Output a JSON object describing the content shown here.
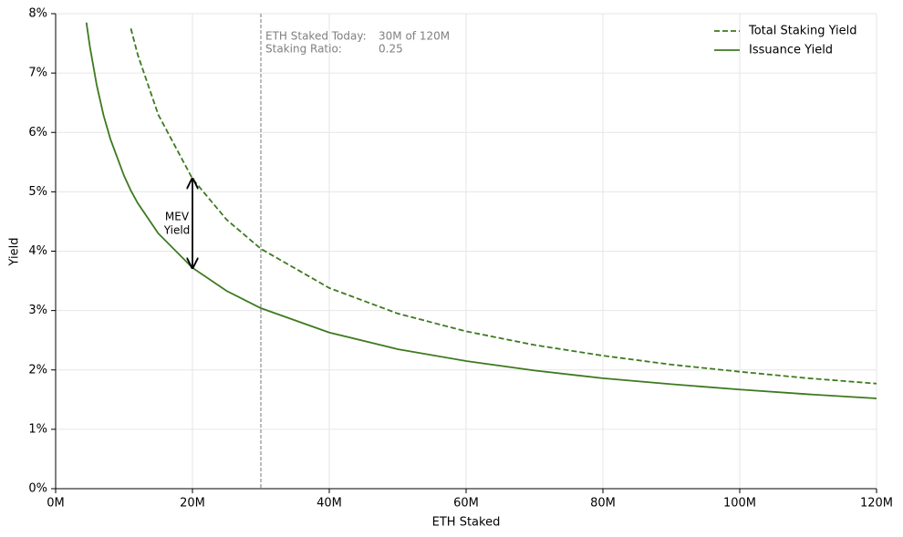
{
  "chart_data": {
    "type": "line",
    "xlabel": "ETH Staked",
    "ylabel": "Yield",
    "x": [
      4.5,
      5,
      6,
      7,
      8,
      10,
      11,
      12,
      15,
      20,
      25,
      30,
      40,
      50,
      60,
      70,
      80,
      90,
      100,
      110,
      120
    ],
    "series": [
      {
        "name": "Total Staking Yield",
        "color": "#3d7a1f",
        "dashed": true,
        "values": [
          null,
          null,
          null,
          null,
          null,
          null,
          7.75,
          7.31,
          6.3,
          5.22,
          4.53,
          4.04,
          3.38,
          2.95,
          2.65,
          2.42,
          2.24,
          2.09,
          1.97,
          1.86,
          1.77
        ]
      },
      {
        "name": "Issuance Yield",
        "color": "#3d7a1f",
        "dashed": false,
        "values": [
          7.85,
          7.45,
          6.8,
          6.29,
          5.89,
          5.27,
          5.02,
          4.81,
          4.3,
          3.72,
          3.33,
          3.04,
          2.63,
          2.35,
          2.15,
          1.99,
          1.86,
          1.76,
          1.67,
          1.59,
          1.52
        ]
      }
    ],
    "xlim": [
      0,
      120
    ],
    "xticks": [
      {
        "value": 0,
        "label": "0M"
      },
      {
        "value": 20,
        "label": "20M"
      },
      {
        "value": 40,
        "label": "40M"
      },
      {
        "value": 60,
        "label": "60M"
      },
      {
        "value": 80,
        "label": "80M"
      },
      {
        "value": 100,
        "label": "100M"
      },
      {
        "value": 120,
        "label": "120M"
      }
    ],
    "ylim": [
      0,
      8
    ],
    "yticks": [
      {
        "value": 0,
        "label": "0%"
      },
      {
        "value": 1,
        "label": "1%"
      },
      {
        "value": 2,
        "label": "2%"
      },
      {
        "value": 3,
        "label": "3%"
      },
      {
        "value": 4,
        "label": "4%"
      },
      {
        "value": 5,
        "label": "5%"
      },
      {
        "value": 6,
        "label": "6%"
      },
      {
        "value": 7,
        "label": "7%"
      },
      {
        "value": 8,
        "label": "8%"
      }
    ],
    "grid": true,
    "legend": "upper right",
    "staked_today": {
      "x": 30,
      "rows": [
        [
          "ETH Staked Today:",
          "30M of 120M"
        ],
        [
          "Staking Ratio:",
          "0.25"
        ]
      ]
    },
    "mev_arrow": {
      "x": 20,
      "from": 3.72,
      "to": 5.22,
      "label_lines": [
        "MEV",
        "Yield"
      ]
    }
  }
}
